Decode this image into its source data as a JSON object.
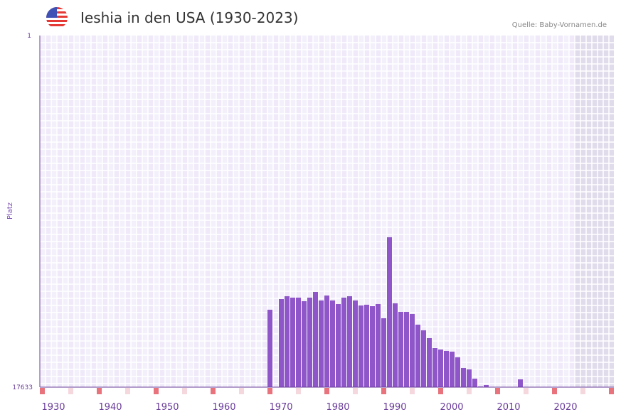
{
  "header": {
    "title": "Ieshia in den USA (1930-2023)",
    "source": "Quelle: Baby-Vornamen.de",
    "flag_icon": "usa-flag-icon"
  },
  "colors": {
    "bar": "#8e56c8",
    "axis": "#6a3d9a",
    "marker_strong": "#e8737c",
    "marker_light": "#f5d7de",
    "grid_a": "#efe9f9",
    "grid_b": "#f3f0fb",
    "future_shade": "#e1dcec"
  },
  "chart_data": {
    "type": "bar",
    "title": "Ieshia in den USA (1930-2023)",
    "xlabel": "",
    "ylabel": "Platz",
    "y_inverted": true,
    "ylim": [
      1,
      17633
    ],
    "y_tick_labels": [
      "1",
      "17633"
    ],
    "xlim": [
      1928,
      2028
    ],
    "x_tick_labels": [
      "1930",
      "1940",
      "1950",
      "1960",
      "1970",
      "1980",
      "1990",
      "2000",
      "2010",
      "2020"
    ],
    "future_from": 2022,
    "grid": true,
    "years": [
      1968,
      1970,
      1971,
      1972,
      1973,
      1974,
      1975,
      1976,
      1977,
      1978,
      1979,
      1980,
      1981,
      1982,
      1983,
      1984,
      1985,
      1986,
      1987,
      1988,
      1989,
      1990,
      1991,
      1992,
      1993,
      1994,
      1995,
      1996,
      1997,
      1998,
      1999,
      2000,
      2001,
      2002,
      2003,
      2004,
      2005,
      2006,
      2012
    ],
    "ranks": [
      13750,
      13215,
      13073,
      13144,
      13144,
      13322,
      13144,
      12859,
      13286,
      13037,
      13286,
      13465,
      13144,
      13073,
      13286,
      13536,
      13500,
      13572,
      13465,
      14177,
      10116,
      13429,
      13857,
      13857,
      13963,
      14498,
      14783,
      15175,
      15674,
      15745,
      15816,
      15852,
      16137,
      16671,
      16742,
      17205,
      17597,
      17525,
      17241
    ]
  }
}
